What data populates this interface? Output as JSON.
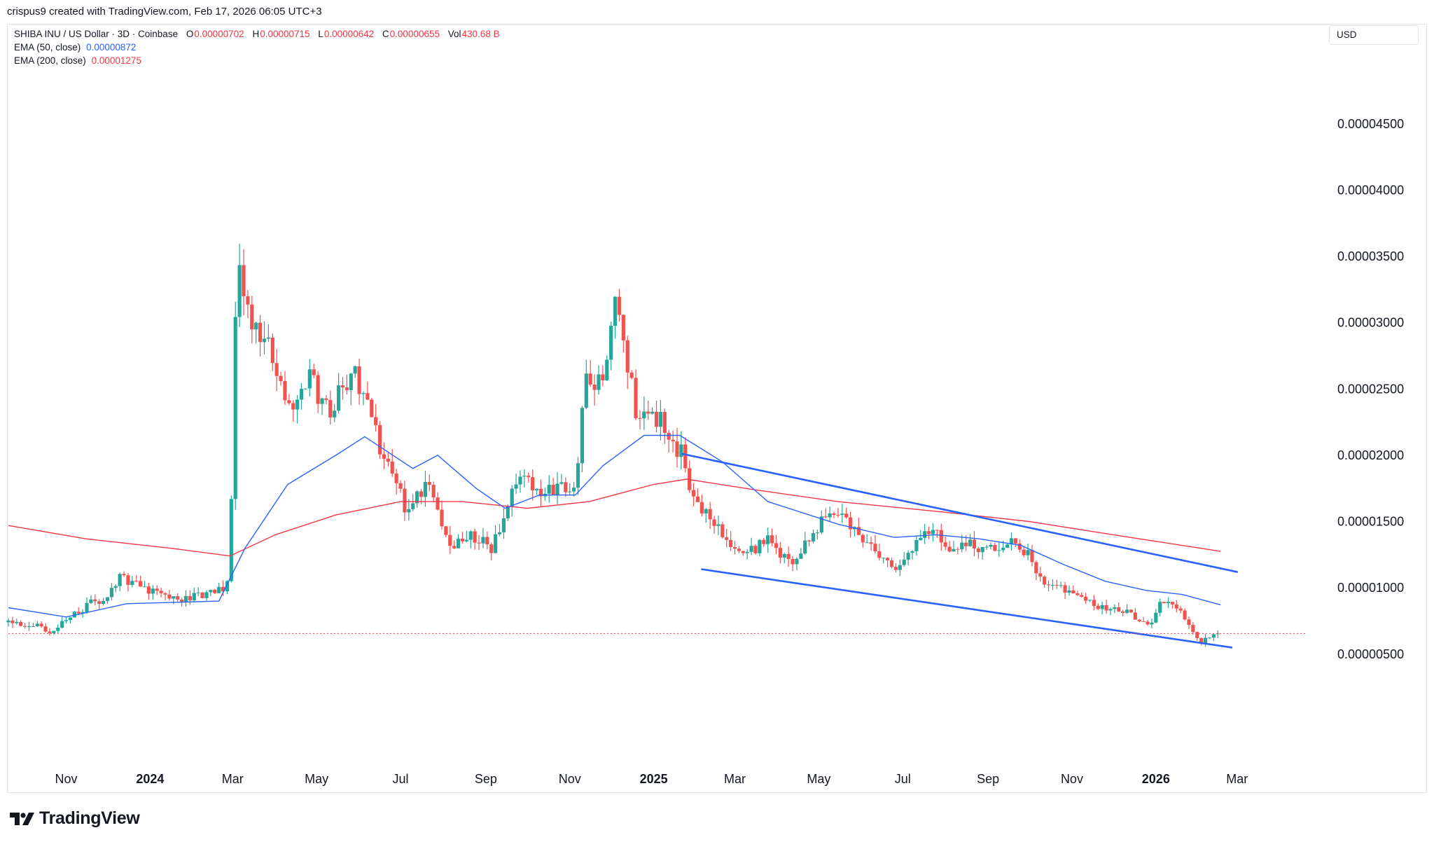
{
  "credit": "crispus9 created with TradingView.com, Feb 17, 2026 06:05 UTC+3",
  "legend": {
    "symbol": "SHIBA INU / US Dollar · 3D · Coinbase",
    "o_label": "O",
    "o_value": "0.00000702",
    "h_label": "H",
    "h_value": "0.00000715",
    "l_label": "L",
    "l_value": "0.00000642",
    "c_label": "C",
    "c_value": "0.00000655",
    "vol_label": "Vol",
    "vol_value": "430.68 B",
    "ema50_label": "EMA (50, close)",
    "ema50_value": "0.00000872",
    "ema200_label": "EMA (200, close)",
    "ema200_value": "0.00001275"
  },
  "currency_button": "USD",
  "brand": "TradingView",
  "colors": {
    "up": "#26a69a",
    "down": "#ef5350",
    "ema50": "#2962ff",
    "ema200": "#f23645",
    "trendline": "#2962ff",
    "text": "#131722",
    "grid": "#e0e3eb"
  },
  "chart_data": {
    "type": "candlestick",
    "title": "SHIBA INU / US Dollar · 3D · Coinbase",
    "y_ticks": [
      "0.00004500",
      "0.00004000",
      "0.00003500",
      "0.00003000",
      "0.00002500",
      "0.00002000",
      "0.00001500",
      "0.00001000",
      "0.00000500"
    ],
    "y_tick_values": [
      4.5e-05,
      4e-05,
      3.5e-05,
      3e-05,
      2.5e-05,
      2e-05,
      1.5e-05,
      1e-05,
      5e-06
    ],
    "x_ticks": [
      {
        "label": "Nov",
        "date": "2023-11-01",
        "bold": false
      },
      {
        "label": "2024",
        "date": "2024-01-01",
        "bold": true
      },
      {
        "label": "Mar",
        "date": "2024-03-01",
        "bold": false
      },
      {
        "label": "May",
        "date": "2024-05-01",
        "bold": false
      },
      {
        "label": "Jul",
        "date": "2024-07-01",
        "bold": false
      },
      {
        "label": "Sep",
        "date": "2024-09-01",
        "bold": false
      },
      {
        "label": "Nov",
        "date": "2024-11-01",
        "bold": false
      },
      {
        "label": "2025",
        "date": "2025-01-01",
        "bold": true
      },
      {
        "label": "Mar",
        "date": "2025-03-01",
        "bold": false
      },
      {
        "label": "May",
        "date": "2025-05-01",
        "bold": false
      },
      {
        "label": "Jul",
        "date": "2025-07-01",
        "bold": false
      },
      {
        "label": "Sep",
        "date": "2025-09-01",
        "bold": false
      },
      {
        "label": "Nov",
        "date": "2025-11-01",
        "bold": false
      },
      {
        "label": "2026",
        "date": "2026-01-01",
        "bold": true
      },
      {
        "label": "Mar",
        "date": "2026-03-01",
        "bold": false
      }
    ],
    "price_path": [
      [
        "2023-09-20",
        7.4e-06
      ],
      [
        "2023-10-10",
        7.2e-06
      ],
      [
        "2023-10-20",
        6.8e-06
      ],
      [
        "2023-11-05",
        7.8e-06
      ],
      [
        "2023-11-20",
        9e-06
      ],
      [
        "2023-12-01",
        9.2e-06
      ],
      [
        "2023-12-10",
        1.08e-05
      ],
      [
        "2023-12-25",
        1e-05
      ],
      [
        "2024-01-10",
        9.4e-06
      ],
      [
        "2024-01-25",
        9.2e-06
      ],
      [
        "2024-02-10",
        9.6e-06
      ],
      [
        "2024-02-25",
        1e-05
      ],
      [
        "2024-02-28",
        1.23e-05
      ],
      [
        "2024-03-01",
        2.23e-05
      ],
      [
        "2024-03-04",
        3.3e-05
      ],
      [
        "2024-03-05",
        3.52e-05
      ],
      [
        "2024-03-13",
        3e-05
      ],
      [
        "2024-03-25",
        2.9e-05
      ],
      [
        "2024-04-05",
        2.55e-05
      ],
      [
        "2024-04-13",
        2.28e-05
      ],
      [
        "2024-04-25",
        2.6e-05
      ],
      [
        "2024-05-10",
        2.32e-05
      ],
      [
        "2024-05-28",
        2.65e-05
      ],
      [
        "2024-06-10",
        2.25e-05
      ],
      [
        "2024-06-20",
        1.95e-05
      ],
      [
        "2024-07-05",
        1.6e-05
      ],
      [
        "2024-07-20",
        1.8e-05
      ],
      [
        "2024-08-05",
        1.3e-05
      ],
      [
        "2024-08-20",
        1.4e-05
      ],
      [
        "2024-09-05",
        1.3e-05
      ],
      [
        "2024-09-25",
        1.85e-05
      ],
      [
        "2024-10-10",
        1.7e-05
      ],
      [
        "2024-10-25",
        1.75e-05
      ],
      [
        "2024-11-05",
        1.7e-05
      ],
      [
        "2024-11-12",
        2.6e-05
      ],
      [
        "2024-11-25",
        2.5e-05
      ],
      [
        "2024-12-05",
        3.2e-05
      ],
      [
        "2024-12-10",
        2.9e-05
      ],
      [
        "2024-12-20",
        2.25e-05
      ],
      [
        "2025-01-05",
        2.3e-05
      ],
      [
        "2025-01-15",
        2.1e-05
      ],
      [
        "2025-01-22",
        2e-05
      ],
      [
        "2025-02-01",
        1.6e-05
      ],
      [
        "2025-02-10",
        1.55e-05
      ],
      [
        "2025-02-25",
        1.35e-05
      ],
      [
        "2025-03-10",
        1.25e-05
      ],
      [
        "2025-03-25",
        1.38e-05
      ],
      [
        "2025-04-10",
        1.18e-05
      ],
      [
        "2025-04-25",
        1.38e-05
      ],
      [
        "2025-05-08",
        1.6e-05
      ],
      [
        "2025-05-25",
        1.45e-05
      ],
      [
        "2025-06-10",
        1.28e-05
      ],
      [
        "2025-06-25",
        1.12e-05
      ],
      [
        "2025-07-10",
        1.3e-05
      ],
      [
        "2025-07-22",
        1.48e-05
      ],
      [
        "2025-08-05",
        1.3e-05
      ],
      [
        "2025-08-20",
        1.32e-05
      ],
      [
        "2025-09-10",
        1.28e-05
      ],
      [
        "2025-09-20",
        1.35e-05
      ],
      [
        "2025-10-01",
        1.25e-05
      ],
      [
        "2025-10-10",
        1.05e-05
      ],
      [
        "2025-10-25",
        1e-05
      ],
      [
        "2025-11-10",
        9e-06
      ],
      [
        "2025-11-25",
        8.5e-06
      ],
      [
        "2025-12-10",
        8.2e-06
      ],
      [
        "2025-12-28",
        7.2e-06
      ],
      [
        "2026-01-05",
        9.2e-06
      ],
      [
        "2026-01-20",
        8e-06
      ],
      [
        "2026-02-03",
        6e-06
      ],
      [
        "2026-02-10",
        6.2e-06
      ],
      [
        "2026-02-17",
        6.55e-06
      ]
    ],
    "ema50": [
      [
        "2023-09-20",
        8.5e-06
      ],
      [
        "2023-11-01",
        7.8e-06
      ],
      [
        "2023-12-15",
        8.8e-06
      ],
      [
        "2024-02-20",
        9e-06
      ],
      [
        "2024-03-10",
        1.3e-05
      ],
      [
        "2024-04-10",
        1.78e-05
      ],
      [
        "2024-05-15",
        2e-05
      ],
      [
        "2024-06-05",
        2.14e-05
      ],
      [
        "2024-07-10",
        1.9e-05
      ],
      [
        "2024-07-28",
        2e-05
      ],
      [
        "2024-08-25",
        1.75e-05
      ],
      [
        "2024-09-15",
        1.6e-05
      ],
      [
        "2024-10-10",
        1.7e-05
      ],
      [
        "2024-11-05",
        1.7e-05
      ],
      [
        "2024-11-25",
        1.92e-05
      ],
      [
        "2024-12-25",
        2.15e-05
      ],
      [
        "2025-01-20",
        2.15e-05
      ],
      [
        "2025-02-20",
        1.95e-05
      ],
      [
        "2025-03-25",
        1.65e-05
      ],
      [
        "2025-05-15",
        1.48e-05
      ],
      [
        "2025-06-25",
        1.38e-05
      ],
      [
        "2025-07-25",
        1.4e-05
      ],
      [
        "2025-08-25",
        1.37e-05
      ],
      [
        "2025-09-25",
        1.32e-05
      ],
      [
        "2025-10-25",
        1.18e-05
      ],
      [
        "2025-11-25",
        1.05e-05
      ],
      [
        "2025-12-25",
        9.8e-06
      ],
      [
        "2026-01-20",
        9.5e-06
      ],
      [
        "2026-02-17",
        8.72e-06
      ]
    ],
    "ema200": [
      [
        "2023-09-20",
        1.47e-05
      ],
      [
        "2023-11-15",
        1.37e-05
      ],
      [
        "2024-01-15",
        1.3e-05
      ],
      [
        "2024-02-28",
        1.24e-05
      ],
      [
        "2024-04-01",
        1.4e-05
      ],
      [
        "2024-05-15",
        1.55e-05
      ],
      [
        "2024-07-01",
        1.65e-05
      ],
      [
        "2024-08-15",
        1.65e-05
      ],
      [
        "2024-10-01",
        1.6e-05
      ],
      [
        "2024-11-15",
        1.65e-05
      ],
      [
        "2025-01-01",
        1.78e-05
      ],
      [
        "2025-01-25",
        1.82e-05
      ],
      [
        "2025-03-15",
        1.74e-05
      ],
      [
        "2025-05-15",
        1.65e-05
      ],
      [
        "2025-08-01",
        1.57e-05
      ],
      [
        "2025-10-01",
        1.5e-05
      ],
      [
        "2025-12-01",
        1.4e-05
      ],
      [
        "2026-02-17",
        1.275e-05
      ]
    ],
    "trendlines": [
      {
        "name": "upper",
        "from": [
          "2025-01-22",
          2.01e-05
        ],
        "to": [
          "2026-03-01",
          1.12e-05
        ]
      },
      {
        "name": "lower",
        "from": [
          "2025-02-05",
          1.14e-05
        ],
        "to": [
          "2026-02-25",
          5.5e-06
        ]
      }
    ],
    "current_price": 6.55e-06,
    "x_range": [
      "2023-09-20",
      "2026-04-20"
    ]
  }
}
